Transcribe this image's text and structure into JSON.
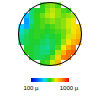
{
  "chart_data": {
    "type": "heatmap",
    "tick_labels": false,
    "grid": false,
    "z": [
      [
        null,
        null,
        null,
        null,
        560,
        600,
        620,
        580,
        null,
        null,
        null,
        null
      ],
      [
        null,
        null,
        500,
        540,
        560,
        620,
        650,
        620,
        580,
        560,
        null,
        null
      ],
      [
        null,
        380,
        500,
        560,
        600,
        640,
        660,
        620,
        600,
        620,
        640,
        null
      ],
      [
        null,
        330,
        480,
        560,
        580,
        600,
        620,
        600,
        620,
        660,
        700,
        null
      ],
      [
        400,
        350,
        520,
        560,
        580,
        560,
        580,
        600,
        620,
        660,
        700,
        720
      ],
      [
        450,
        500,
        540,
        560,
        560,
        540,
        560,
        580,
        600,
        640,
        700,
        740
      ],
      [
        480,
        520,
        540,
        560,
        540,
        520,
        540,
        560,
        600,
        660,
        720,
        760
      ],
      [
        500,
        520,
        540,
        540,
        520,
        500,
        520,
        560,
        620,
        700,
        760,
        800
      ],
      [
        null,
        540,
        540,
        520,
        500,
        480,
        520,
        580,
        680,
        780,
        840,
        null
      ],
      [
        null,
        560,
        540,
        520,
        500,
        500,
        540,
        640,
        760,
        860,
        880,
        null
      ],
      [
        null,
        null,
        540,
        520,
        520,
        540,
        600,
        720,
        840,
        860,
        null,
        null
      ],
      [
        null,
        null,
        null,
        null,
        560,
        580,
        660,
        760,
        null,
        null,
        null,
        null
      ]
    ],
    "zlim": [
      100,
      1000
    ],
    "colorbar_ticks": [
      {
        "value": 100,
        "label": "100 µ"
      },
      {
        "value": 1000,
        "label": "1000 µ"
      }
    ]
  }
}
